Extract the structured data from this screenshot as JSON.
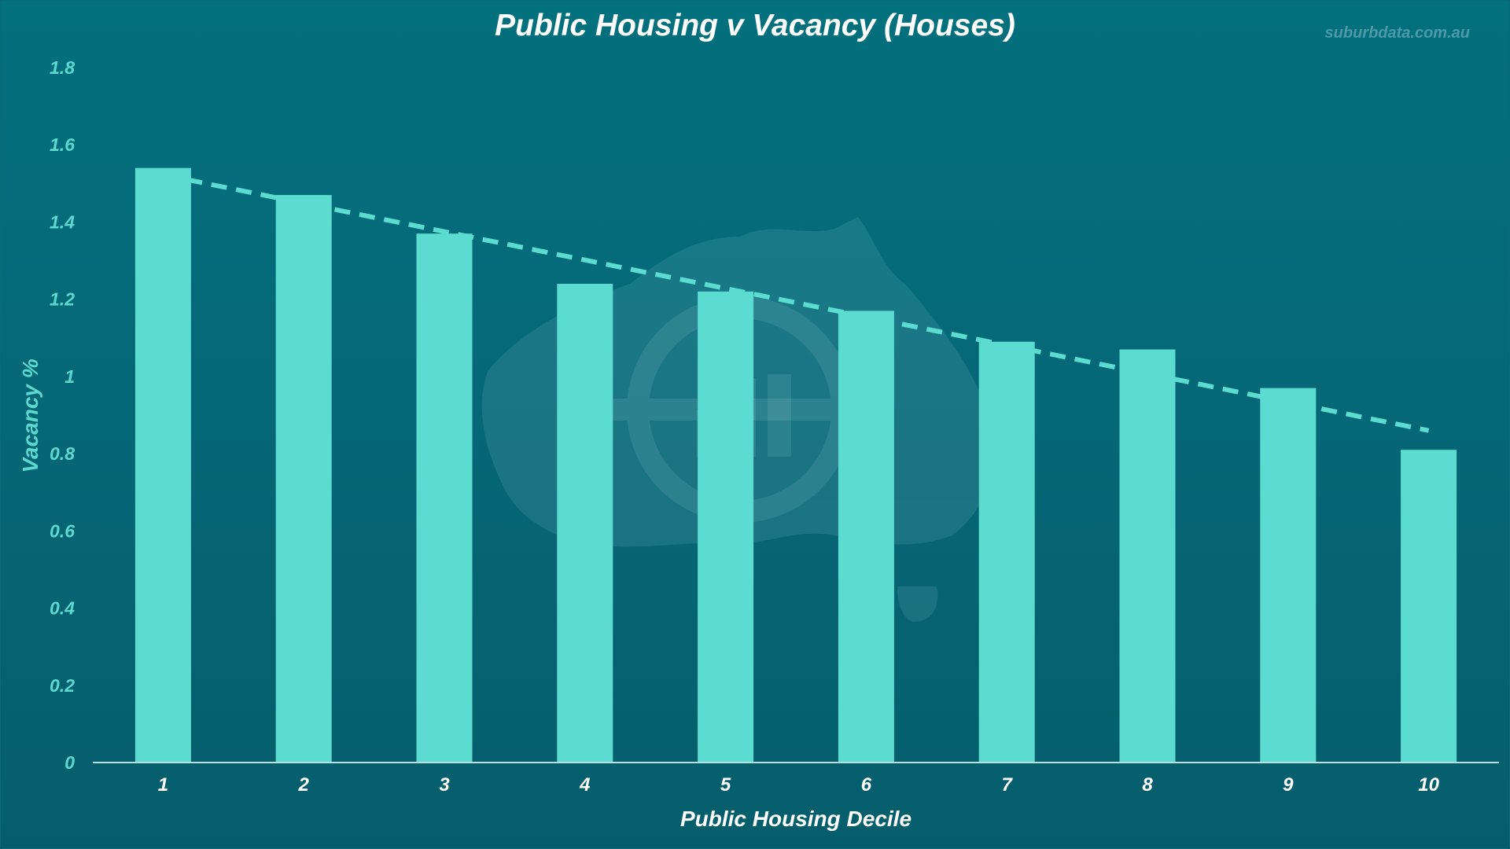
{
  "chart_data": {
    "type": "bar",
    "title": "Public Housing v Vacancy (Houses)",
    "watermark": "suburbdata.com.au",
    "xlabel": "Public Housing Decile",
    "ylabel": "Vacancy %",
    "categories": [
      "1",
      "2",
      "3",
      "4",
      "5",
      "6",
      "7",
      "8",
      "9",
      "10"
    ],
    "values": [
      1.54,
      1.47,
      1.37,
      1.24,
      1.22,
      1.17,
      1.09,
      1.07,
      0.97,
      0.81
    ],
    "trendline": {
      "type": "linear",
      "style": "dashed",
      "start": 1.51,
      "end": 0.86
    },
    "ylim": [
      0,
      1.8
    ],
    "yticks": [
      "0",
      "0.2",
      "0.4",
      "0.6",
      "0.8",
      "1",
      "1.2",
      "1.4",
      "1.6",
      "1.8"
    ],
    "grid": false,
    "colors": {
      "bar": "#5cdbd1",
      "trend": "#5cdbd1",
      "background": "#066877",
      "axis_text": "#5cd8cf"
    }
  }
}
